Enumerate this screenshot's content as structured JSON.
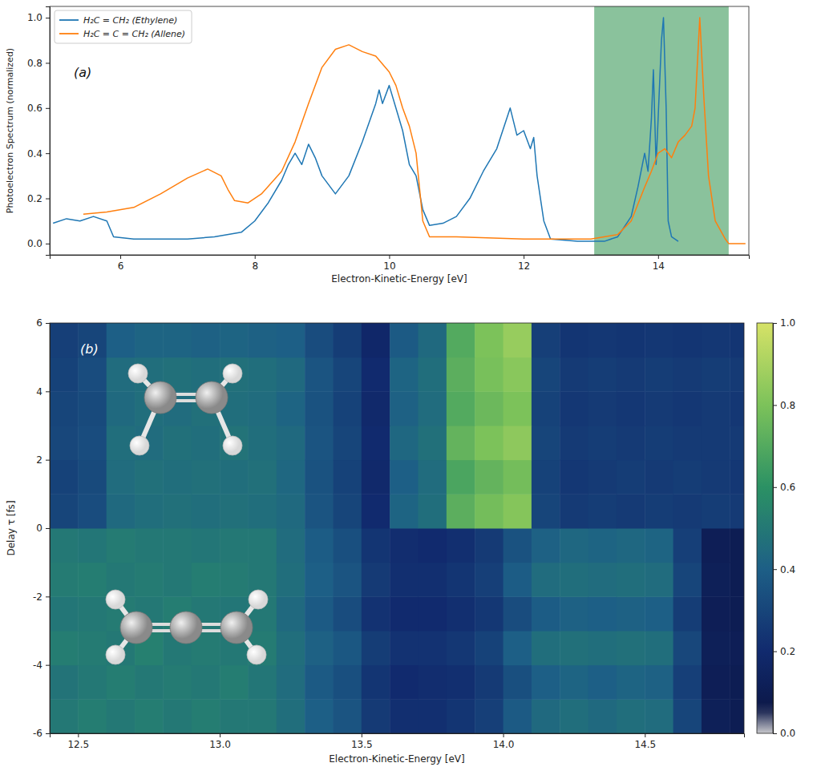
{
  "chart_data": [
    {
      "type": "line",
      "label": "(a)",
      "x_label": "Electron-Kinetic-Energy [eV]",
      "y_label": "Photoelectron Spectrum (normalized)",
      "xlim": [
        4.95,
        15.35
      ],
      "ylim": [
        -0.05,
        1.05
      ],
      "xticks": [
        6,
        8,
        10,
        12,
        14
      ],
      "yticks": [
        {
          "value": 0,
          "label": "0.0"
        },
        {
          "value": 0.2,
          "label": "0.2"
        },
        {
          "value": 0.4,
          "label": "0.4"
        },
        {
          "value": 0.6,
          "label": "0.6"
        },
        {
          "value": 0.8,
          "label": "0.8"
        },
        {
          "value": 1.0,
          "label": "1.0"
        }
      ],
      "grid": false,
      "legend": "upper left",
      "span": [
        13.05,
        15.05
      ],
      "series": [
        {
          "name": "H₂C = CH₂ (Ethylene)",
          "color": "#1f77b4",
          "x": [
            5.0,
            5.2,
            5.4,
            5.6,
            5.8,
            5.9,
            6.2,
            6.6,
            7.0,
            7.4,
            7.8,
            8.0,
            8.2,
            8.4,
            8.5,
            8.6,
            8.7,
            8.8,
            8.9,
            9.0,
            9.2,
            9.4,
            9.6,
            9.8,
            9.85,
            9.9,
            10.0,
            10.1,
            10.2,
            10.3,
            10.4,
            10.5,
            10.6,
            10.8,
            11.0,
            11.2,
            11.4,
            11.6,
            11.8,
            11.9,
            12.0,
            12.1,
            12.15,
            12.2,
            12.3,
            12.4,
            12.8,
            13.2,
            13.4,
            13.6,
            13.7,
            13.8,
            13.85,
            13.9,
            13.93,
            13.97,
            14.0,
            14.05,
            14.08,
            14.12,
            14.15,
            14.2,
            14.3
          ],
          "values": [
            0.09,
            0.11,
            0.1,
            0.12,
            0.1,
            0.03,
            0.02,
            0.02,
            0.02,
            0.03,
            0.05,
            0.1,
            0.18,
            0.28,
            0.35,
            0.4,
            0.35,
            0.44,
            0.38,
            0.3,
            0.22,
            0.3,
            0.45,
            0.62,
            0.68,
            0.62,
            0.7,
            0.6,
            0.5,
            0.35,
            0.3,
            0.15,
            0.08,
            0.09,
            0.12,
            0.2,
            0.32,
            0.42,
            0.6,
            0.48,
            0.5,
            0.42,
            0.47,
            0.3,
            0.1,
            0.02,
            0.01,
            0.01,
            0.03,
            0.12,
            0.25,
            0.4,
            0.32,
            0.55,
            0.77,
            0.35,
            0.55,
            0.9,
            1.0,
            0.6,
            0.1,
            0.03,
            0.01
          ]
        },
        {
          "name": "H₂C = C = CH₂ (Allene)",
          "color": "#ff7f0e",
          "x": [
            5.45,
            5.8,
            6.2,
            6.6,
            7.0,
            7.3,
            7.5,
            7.6,
            7.7,
            7.9,
            8.1,
            8.4,
            8.6,
            8.8,
            9.0,
            9.2,
            9.4,
            9.6,
            9.8,
            10.0,
            10.1,
            10.2,
            10.3,
            10.4,
            10.5,
            10.6,
            11.0,
            12.0,
            13.0,
            13.4,
            13.6,
            13.8,
            13.9,
            14.0,
            14.1,
            14.2,
            14.3,
            14.4,
            14.5,
            14.55,
            14.62,
            14.68,
            14.75,
            14.85,
            15.0,
            15.05,
            15.3
          ],
          "values": [
            0.13,
            0.14,
            0.16,
            0.22,
            0.29,
            0.33,
            0.3,
            0.24,
            0.19,
            0.18,
            0.22,
            0.32,
            0.45,
            0.62,
            0.78,
            0.86,
            0.88,
            0.85,
            0.83,
            0.76,
            0.7,
            0.6,
            0.52,
            0.4,
            0.1,
            0.03,
            0.03,
            0.02,
            0.02,
            0.04,
            0.1,
            0.25,
            0.32,
            0.4,
            0.42,
            0.38,
            0.45,
            0.48,
            0.52,
            0.6,
            1.0,
            0.65,
            0.3,
            0.1,
            0.02,
            0.0,
            0.0
          ]
        }
      ]
    },
    {
      "type": "heatmap",
      "label": "(b)",
      "x_label": "Electron-Kinetic-Energy [eV]",
      "y_label": "Delay τ [fs]",
      "xlim": [
        12.4,
        14.85
      ],
      "ylim": [
        -6,
        6
      ],
      "xticks": [
        12.5,
        {
          "value": 13,
          "label": "13.0"
        },
        13.5,
        {
          "value": 14,
          "label": "14.0"
        },
        14.5
      ],
      "yticks": [
        -6,
        -4,
        -2,
        0,
        2,
        4,
        6
      ],
      "x_edges": [
        12.4,
        12.5,
        12.6,
        12.7,
        12.8,
        12.9,
        13.0,
        13.1,
        13.2,
        13.3,
        13.4,
        13.5,
        13.6,
        13.7,
        13.8,
        13.9,
        14.0,
        14.1,
        14.2,
        14.3,
        14.4,
        14.5,
        14.6,
        14.7,
        14.8,
        14.85
      ],
      "y_edges": [
        -6,
        -5,
        -4,
        -3,
        -2,
        -1,
        0,
        1,
        2,
        3,
        4,
        5,
        6
      ],
      "z": [
        [
          0.5,
          0.52,
          0.5,
          0.52,
          0.5,
          0.52,
          0.5,
          0.5,
          0.46,
          0.4,
          0.36,
          0.26,
          0.22,
          0.22,
          0.24,
          0.28,
          0.38,
          0.44,
          0.46,
          0.44,
          0.46,
          0.45,
          0.3,
          0.12,
          0.1
        ],
        [
          0.48,
          0.5,
          0.52,
          0.5,
          0.51,
          0.5,
          0.52,
          0.49,
          0.45,
          0.38,
          0.34,
          0.24,
          0.2,
          0.21,
          0.22,
          0.26,
          0.34,
          0.4,
          0.42,
          0.4,
          0.42,
          0.41,
          0.28,
          0.11,
          0.1
        ],
        [
          0.52,
          0.51,
          0.5,
          0.53,
          0.5,
          0.51,
          0.5,
          0.51,
          0.46,
          0.41,
          0.37,
          0.27,
          0.23,
          0.23,
          0.25,
          0.29,
          0.4,
          0.46,
          0.47,
          0.46,
          0.47,
          0.46,
          0.31,
          0.12,
          0.11
        ],
        [
          0.49,
          0.5,
          0.51,
          0.5,
          0.52,
          0.5,
          0.49,
          0.5,
          0.44,
          0.38,
          0.33,
          0.23,
          0.2,
          0.2,
          0.22,
          0.25,
          0.33,
          0.39,
          0.41,
          0.4,
          0.41,
          0.4,
          0.27,
          0.11,
          0.1
        ],
        [
          0.51,
          0.52,
          0.5,
          0.51,
          0.5,
          0.52,
          0.51,
          0.5,
          0.46,
          0.4,
          0.36,
          0.26,
          0.22,
          0.22,
          0.24,
          0.28,
          0.39,
          0.45,
          0.46,
          0.45,
          0.46,
          0.45,
          0.3,
          0.12,
          0.1
        ],
        [
          0.5,
          0.49,
          0.51,
          0.5,
          0.5,
          0.49,
          0.5,
          0.5,
          0.45,
          0.39,
          0.34,
          0.24,
          0.21,
          0.2,
          0.22,
          0.26,
          0.35,
          0.41,
          0.43,
          0.42,
          0.43,
          0.42,
          0.28,
          0.11,
          0.1
        ],
        [
          0.3,
          0.33,
          0.44,
          0.46,
          0.47,
          0.46,
          0.47,
          0.46,
          0.44,
          0.36,
          0.3,
          0.2,
          0.42,
          0.46,
          0.72,
          0.78,
          0.82,
          0.3,
          0.26,
          0.27,
          0.26,
          0.27,
          0.26,
          0.27,
          0.26
        ],
        [
          0.29,
          0.32,
          0.45,
          0.47,
          0.46,
          0.47,
          0.46,
          0.47,
          0.43,
          0.35,
          0.29,
          0.19,
          0.4,
          0.45,
          0.68,
          0.74,
          0.78,
          0.29,
          0.25,
          0.26,
          0.27,
          0.26,
          0.27,
          0.26,
          0.25
        ],
        [
          0.31,
          0.33,
          0.46,
          0.45,
          0.47,
          0.46,
          0.48,
          0.46,
          0.44,
          0.36,
          0.3,
          0.2,
          0.43,
          0.47,
          0.74,
          0.8,
          0.84,
          0.3,
          0.26,
          0.27,
          0.26,
          0.27,
          0.26,
          0.26,
          0.26
        ],
        [
          0.3,
          0.32,
          0.44,
          0.46,
          0.45,
          0.47,
          0.46,
          0.45,
          0.42,
          0.35,
          0.29,
          0.19,
          0.41,
          0.45,
          0.7,
          0.76,
          0.8,
          0.29,
          0.25,
          0.26,
          0.25,
          0.26,
          0.25,
          0.26,
          0.25
        ],
        [
          0.29,
          0.33,
          0.45,
          0.46,
          0.47,
          0.46,
          0.47,
          0.46,
          0.44,
          0.36,
          0.3,
          0.2,
          0.42,
          0.46,
          0.72,
          0.79,
          0.83,
          0.3,
          0.26,
          0.27,
          0.26,
          0.27,
          0.26,
          0.27,
          0.26
        ],
        [
          0.28,
          0.3,
          0.4,
          0.42,
          0.42,
          0.41,
          0.42,
          0.41,
          0.4,
          0.33,
          0.27,
          0.18,
          0.38,
          0.44,
          0.7,
          0.8,
          0.86,
          0.28,
          0.24,
          0.25,
          0.24,
          0.25,
          0.24,
          0.25,
          0.24
        ]
      ],
      "colorbar_range": [
        0,
        1
      ],
      "colorbar_ticks": [
        {
          "value": 0,
          "label": "0.0"
        },
        {
          "value": 0.2,
          "label": "0.2"
        },
        {
          "value": 0.4,
          "label": "0.4"
        },
        {
          "value": 0.6,
          "label": "0.6"
        },
        {
          "value": 0.8,
          "label": "0.8"
        },
        {
          "value": 1.0,
          "label": "1.0"
        }
      ]
    }
  ]
}
